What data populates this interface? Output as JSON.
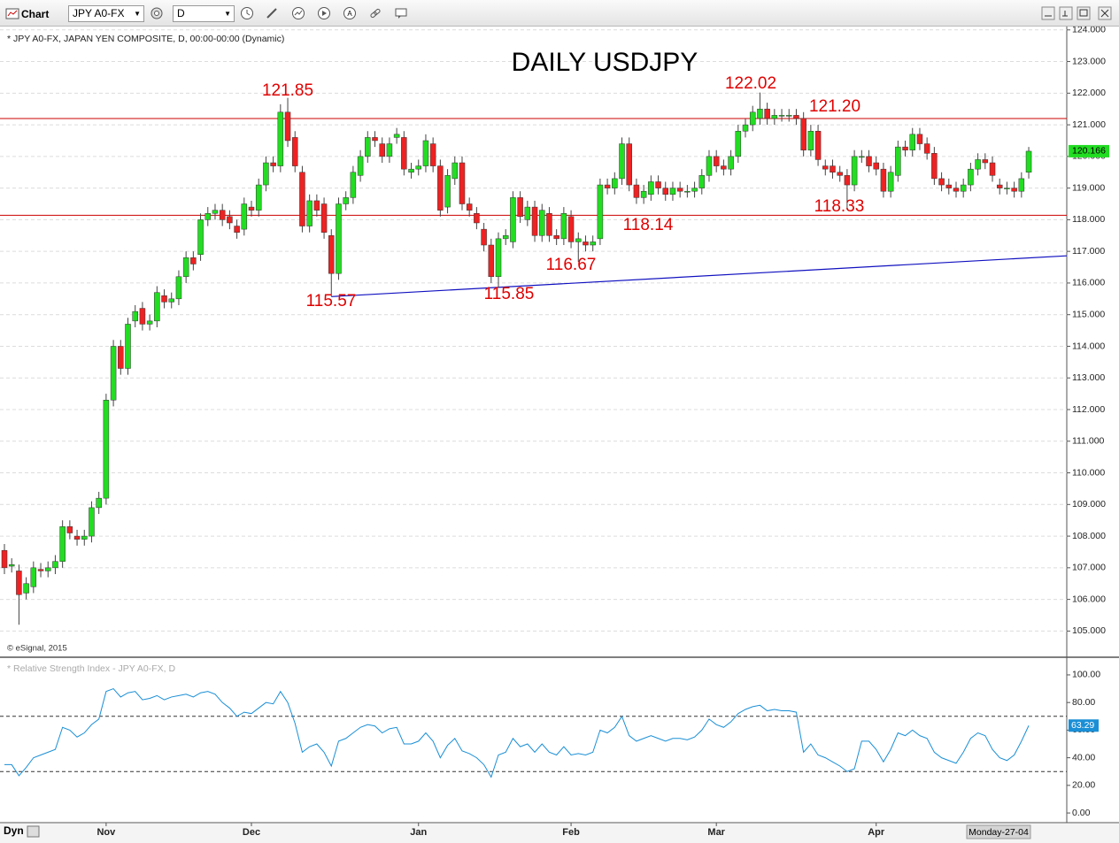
{
  "toolbar": {
    "title": "Chart",
    "symbol": "JPY A0-FX",
    "interval": "D"
  },
  "status": {
    "mode": "Dyn",
    "cursor_date": "Monday-27-04"
  },
  "chart_data": [
    {
      "type": "candlestick",
      "title": "DAILY USDJPY",
      "subtitle": "* JPY A0-FX, JAPAN YEN COMPOSITE, D, 00:00-00:00 (Dynamic)",
      "credit": "© eSignal, 2015",
      "categories": [
        null,
        null,
        null,
        null,
        null,
        null,
        null,
        null,
        null,
        null,
        null,
        null,
        null,
        null,
        "Nov",
        null,
        null,
        null,
        null,
        null,
        null,
        null,
        null,
        null,
        null,
        null,
        null,
        null,
        null,
        null,
        null,
        null,
        null,
        null,
        "Dec",
        null,
        null,
        null,
        null,
        null,
        null,
        null,
        null,
        null,
        null,
        null,
        null,
        null,
        null,
        null,
        null,
        null,
        null,
        null,
        null,
        null,
        null,
        "Jan",
        null,
        null,
        null,
        null,
        null,
        null,
        null,
        null,
        null,
        null,
        null,
        null,
        null,
        null,
        null,
        null,
        null,
        null,
        null,
        null,
        "Feb",
        null,
        null,
        null,
        null,
        null,
        null,
        null,
        null,
        null,
        null,
        null,
        null,
        null,
        null,
        null,
        null,
        null,
        null,
        null,
        "Mar",
        null,
        null,
        null,
        null,
        null,
        null,
        null,
        null,
        null,
        null,
        null,
        null,
        null,
        null,
        null,
        null,
        null,
        null,
        null,
        null,
        null,
        "Apr",
        null,
        null,
        null,
        null,
        null,
        null,
        null,
        null,
        null,
        null,
        null,
        null,
        null,
        null,
        null,
        null,
        null,
        null,
        null,
        null,
        null
      ],
      "open": [
        107.55,
        107.05,
        106.9,
        106.2,
        106.4,
        106.95,
        106.9,
        107.0,
        107.2,
        108.3,
        108.0,
        107.9,
        108.0,
        108.9,
        109.2,
        112.3,
        114.0,
        113.3,
        114.8,
        115.2,
        114.7,
        114.8,
        115.6,
        115.4,
        115.5,
        116.2,
        116.8,
        116.9,
        118.0,
        118.2,
        118.3,
        118.1,
        117.8,
        117.7,
        118.4,
        118.3,
        119.1,
        119.8,
        119.7,
        121.4,
        120.6,
        119.5,
        117.8,
        118.6,
        118.5,
        117.5,
        116.3,
        118.5,
        118.7,
        119.4,
        120.0,
        120.6,
        120.4,
        120.0,
        120.6,
        120.6,
        119.5,
        119.6,
        119.7,
        120.4,
        119.7,
        118.4,
        119.3,
        119.8,
        118.5,
        118.2,
        117.7,
        117.2,
        116.2,
        117.4,
        117.3,
        118.7,
        118.0,
        118.4,
        117.5,
        118.2,
        117.5,
        117.4,
        118.1,
        117.3,
        117.3,
        117.2,
        117.4,
        119.1,
        119.0,
        119.3,
        120.4,
        119.1,
        118.7,
        118.8,
        119.2,
        119.0,
        118.8,
        119.0,
        118.9,
        118.9,
        119.0,
        119.4,
        120.0,
        119.7,
        119.6,
        120.0,
        120.8,
        121.0,
        121.2,
        121.5,
        121.2,
        121.3,
        121.3,
        121.3,
        121.2,
        120.2,
        120.8,
        119.7,
        119.7,
        119.5,
        119.4,
        119.1,
        120.0,
        120.0,
        119.8,
        119.6,
        118.9,
        119.4,
        120.3,
        120.2,
        120.7,
        120.4,
        120.1,
        119.3,
        119.1,
        119.0,
        118.9,
        119.1,
        119.6,
        119.9,
        119.8,
        119.1,
        119.0,
        119.0,
        118.9,
        119.5
      ],
      "high": [
        107.75,
        107.3,
        107.1,
        106.7,
        107.2,
        107.15,
        107.2,
        107.4,
        108.5,
        108.5,
        108.2,
        108.2,
        109.1,
        109.4,
        112.5,
        114.2,
        114.2,
        114.9,
        115.3,
        115.4,
        115.0,
        115.9,
        115.8,
        115.7,
        116.4,
        117.0,
        117.0,
        118.2,
        118.4,
        118.5,
        118.5,
        118.3,
        118.0,
        118.7,
        118.6,
        119.3,
        120.0,
        120.0,
        121.65,
        121.85,
        120.8,
        119.7,
        118.8,
        118.8,
        118.7,
        117.7,
        118.7,
        118.9,
        119.7,
        120.2,
        120.8,
        120.8,
        120.6,
        120.6,
        120.9,
        120.8,
        119.8,
        119.9,
        120.7,
        120.6,
        119.9,
        119.6,
        120.0,
        120.0,
        118.7,
        118.4,
        117.9,
        117.4,
        117.6,
        117.7,
        118.9,
        118.9,
        118.6,
        118.6,
        118.5,
        118.4,
        117.7,
        118.4,
        118.3,
        117.6,
        117.5,
        117.5,
        119.3,
        119.3,
        119.5,
        120.6,
        120.6,
        119.3,
        119.1,
        119.4,
        119.4,
        119.2,
        119.2,
        119.2,
        119.1,
        119.2,
        119.6,
        120.2,
        120.2,
        119.9,
        120.2,
        121.0,
        121.2,
        121.6,
        122.02,
        121.7,
        121.5,
        121.5,
        121.5,
        121.5,
        121.4,
        121.0,
        121.0,
        119.9,
        119.9,
        119.7,
        119.6,
        120.2,
        120.2,
        120.2,
        120.0,
        119.8,
        119.7,
        120.5,
        120.5,
        120.9,
        120.9,
        120.6,
        120.3,
        119.5,
        119.3,
        119.2,
        119.3,
        119.8,
        120.1,
        120.1,
        120.0,
        119.3,
        119.2,
        119.2,
        119.5,
        120.3
      ],
      "low": [
        106.8,
        106.85,
        105.2,
        106.0,
        106.2,
        106.7,
        106.7,
        106.8,
        107.0,
        107.9,
        107.7,
        107.7,
        107.8,
        108.7,
        109.0,
        112.1,
        113.1,
        113.1,
        114.6,
        114.5,
        114.5,
        114.6,
        115.2,
        115.2,
        115.3,
        116.0,
        116.4,
        116.7,
        117.8,
        118.0,
        117.8,
        117.7,
        117.4,
        117.5,
        118.1,
        118.1,
        118.9,
        119.5,
        119.5,
        120.3,
        119.5,
        117.6,
        117.6,
        118.1,
        117.4,
        115.57,
        116.1,
        118.3,
        118.5,
        119.2,
        119.8,
        120.3,
        119.8,
        119.8,
        120.4,
        119.4,
        119.3,
        119.4,
        119.5,
        119.5,
        118.1,
        118.2,
        119.1,
        118.3,
        118.1,
        117.7,
        117.0,
        116.0,
        115.85,
        117.2,
        117.1,
        117.9,
        117.8,
        117.3,
        117.3,
        117.3,
        117.2,
        117.2,
        117.1,
        116.67,
        117.0,
        117.0,
        117.2,
        118.8,
        118.8,
        119.1,
        118.9,
        118.5,
        118.5,
        118.6,
        118.8,
        118.6,
        118.6,
        118.7,
        118.7,
        118.7,
        118.8,
        119.2,
        119.5,
        119.4,
        119.4,
        119.8,
        120.6,
        120.8,
        121.0,
        121.0,
        121.0,
        121.1,
        121.1,
        121.0,
        120.0,
        120.0,
        119.7,
        119.4,
        119.3,
        119.2,
        118.33,
        118.9,
        119.8,
        119.5,
        119.4,
        118.7,
        118.7,
        119.2,
        120.0,
        120.0,
        120.2,
        119.9,
        119.1,
        118.9,
        118.8,
        118.7,
        118.7,
        118.9,
        119.4,
        119.6,
        119.2,
        118.8,
        118.8,
        118.7,
        118.7,
        119.3
      ],
      "close": [
        107.0,
        107.1,
        106.15,
        106.5,
        107.0,
        106.9,
        107.0,
        107.2,
        108.3,
        108.1,
        107.9,
        108.0,
        108.9,
        109.2,
        112.3,
        114.0,
        113.3,
        114.7,
        115.1,
        114.7,
        114.8,
        115.7,
        115.4,
        115.5,
        116.2,
        116.8,
        116.6,
        118.0,
        118.2,
        118.3,
        118.0,
        117.9,
        117.6,
        118.5,
        118.3,
        119.1,
        119.8,
        119.7,
        121.4,
        120.5,
        119.7,
        117.8,
        118.6,
        118.3,
        117.6,
        116.3,
        118.5,
        118.7,
        119.5,
        120.0,
        120.6,
        120.5,
        120.0,
        120.4,
        120.7,
        119.6,
        119.6,
        119.7,
        120.5,
        119.7,
        118.3,
        119.4,
        119.8,
        118.5,
        118.3,
        117.9,
        117.2,
        116.2,
        117.4,
        117.5,
        118.7,
        118.1,
        118.4,
        117.5,
        118.3,
        117.5,
        117.4,
        118.2,
        117.3,
        117.4,
        117.2,
        117.3,
        119.1,
        119.0,
        119.3,
        120.4,
        119.1,
        118.7,
        118.9,
        119.2,
        119.0,
        118.8,
        119.0,
        118.9,
        118.9,
        119.0,
        119.4,
        120.0,
        119.7,
        119.6,
        120.0,
        120.8,
        121.0,
        121.4,
        121.5,
        121.2,
        121.3,
        121.3,
        121.3,
        121.2,
        120.2,
        120.8,
        119.9,
        119.6,
        119.5,
        119.4,
        119.1,
        120.0,
        120.0,
        119.7,
        119.6,
        118.9,
        119.5,
        120.3,
        120.2,
        120.7,
        120.4,
        120.1,
        119.3,
        119.1,
        119.0,
        118.9,
        119.1,
        119.6,
        119.9,
        119.8,
        119.4,
        119.0,
        119.0,
        118.9,
        119.3,
        120.166
      ],
      "up_color": "#22dd22",
      "down_color": "#ee2222",
      "ylim": [
        104.2,
        124.05
      ],
      "yticks": [
        {
          "value": 105,
          "label": "105.000"
        },
        {
          "value": 106,
          "label": "106.000"
        },
        {
          "value": 107,
          "label": "107.000"
        },
        {
          "value": 108,
          "label": "108.000"
        },
        {
          "value": 109,
          "label": "109.000"
        },
        {
          "value": 110,
          "label": "110.000"
        },
        {
          "value": 111,
          "label": "111.000"
        },
        {
          "value": 112,
          "label": "112.000"
        },
        {
          "value": 113,
          "label": "113.000"
        },
        {
          "value": 114,
          "label": "114.000"
        },
        {
          "value": 115,
          "label": "115.000"
        },
        {
          "value": 116,
          "label": "116.000"
        },
        {
          "value": 117,
          "label": "117.000"
        },
        {
          "value": 118,
          "label": "118.000"
        },
        {
          "value": 119,
          "label": "119.000"
        },
        {
          "value": 120,
          "label": "120.000"
        },
        {
          "value": 121,
          "label": "121.000"
        },
        {
          "value": 122,
          "label": "122.000"
        },
        {
          "value": 123,
          "label": "123.000"
        },
        {
          "value": 124,
          "label": "124.000"
        }
      ],
      "grid": true,
      "levels": [
        {
          "value": 121.2,
          "label": "121.20"
        },
        118.14
      ],
      "level_color": "#cc0000",
      "annotations": [
        121.85,
        122.02,
        115.57,
        115.85,
        116.67,
        118.33
      ],
      "annotation_color": "#e00000",
      "trendline": {
        "values": [
          115.57,
          116.86
        ],
        "color": "#1010c0"
      }
    },
    {
      "type": "line",
      "title": "* Relative Strength Index - JPY A0-FX, D",
      "values": [
        35,
        35,
        27,
        33,
        40,
        42,
        44,
        46,
        62,
        60,
        55,
        58,
        64,
        68,
        88,
        90,
        84,
        87,
        88,
        82,
        83,
        85,
        82,
        84,
        85,
        86,
        84,
        87,
        88,
        86,
        80,
        76,
        70,
        73,
        72,
        76,
        80,
        79,
        88,
        80,
        65,
        44,
        48,
        50,
        44,
        34,
        52,
        54,
        58,
        62,
        64,
        63,
        58,
        61,
        62,
        50,
        50,
        52,
        58,
        52,
        40,
        49,
        54,
        45,
        43,
        40,
        35,
        26,
        42,
        44,
        54,
        48,
        50,
        44,
        50,
        44,
        42,
        48,
        42,
        43,
        42,
        44,
        60,
        58,
        62,
        70,
        56,
        52,
        54,
        56,
        54,
        52,
        54,
        54,
        53,
        55,
        60,
        68,
        64,
        62,
        66,
        72,
        75,
        77,
        78,
        74,
        75,
        74,
        74,
        73,
        44,
        50,
        42,
        40,
        37,
        34,
        30,
        32,
        52,
        52,
        46,
        37,
        46,
        58,
        56,
        60,
        56,
        54,
        44,
        40,
        38,
        36,
        44,
        54,
        58,
        56,
        46,
        40,
        38,
        42,
        52,
        63.29
      ],
      "color": "#1a8fd6",
      "ylim": [
        -7,
        111.5
      ],
      "yticks": [
        {
          "value": 0,
          "label": "0.00"
        },
        {
          "value": 20,
          "label": "20.00"
        },
        {
          "value": 40,
          "label": "40.00"
        },
        {
          "value": 60,
          "label": "60.00"
        },
        {
          "value": 80,
          "label": "80.00"
        },
        {
          "value": 100,
          "label": "100.00"
        }
      ],
      "reference_lines": [
        70,
        30
      ]
    }
  ]
}
